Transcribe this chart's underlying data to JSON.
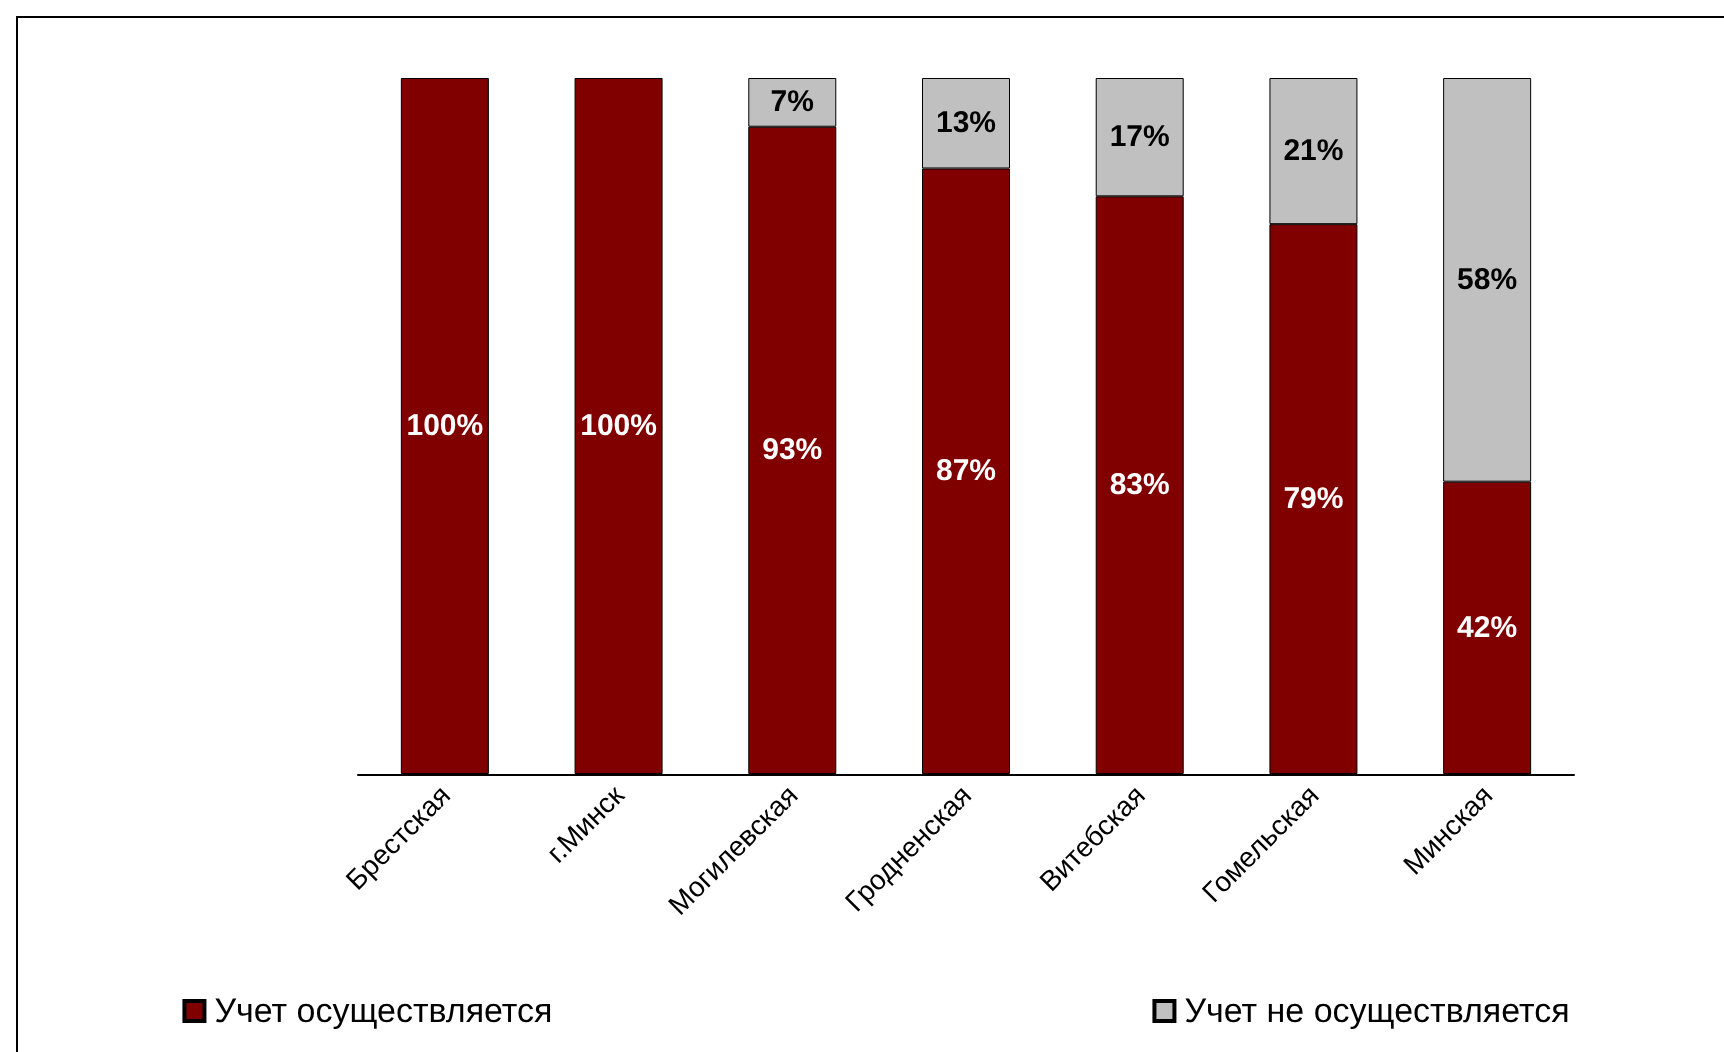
{
  "chart_data": {
    "type": "bar",
    "stacked": true,
    "categories": [
      "Брестская",
      "г.Минск",
      "Могилевская",
      "Гродненская",
      "Витебская",
      "Гомельская",
      "Минская"
    ],
    "series": [
      {
        "name": "Учет осуществляется",
        "color": "#800000",
        "values": [
          100,
          100,
          93,
          87,
          83,
          79,
          42
        ],
        "value_labels": [
          "100%",
          "100%",
          "93%",
          "87%",
          "83%",
          "79%",
          "42%"
        ]
      },
      {
        "name": "Учет не осуществляется",
        "color": "#c0c0c0",
        "values": [
          null,
          null,
          7,
          13,
          17,
          21,
          58
        ],
        "value_labels": [
          null,
          null,
          "7%",
          "13%",
          "17%",
          "21%",
          "58%"
        ]
      }
    ],
    "legend": "bottom"
  }
}
